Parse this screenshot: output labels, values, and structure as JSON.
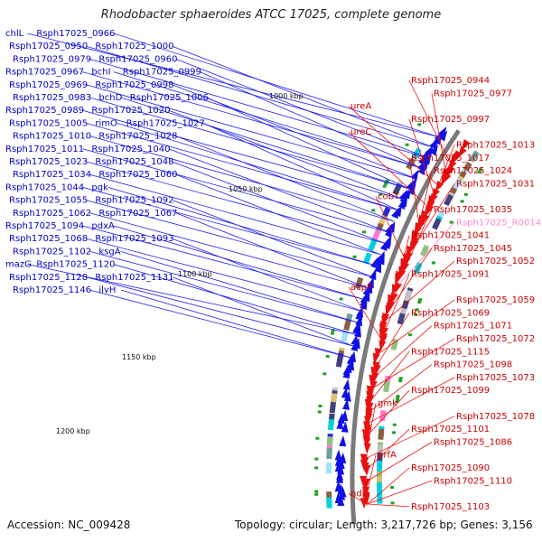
{
  "title": "Rhodobacter sphaeroides ATCC 17025, complete genome",
  "footer": {
    "accession": "Accession: NC_009428",
    "summary": "Topology: circular; Length: 3,217,726 bp; Genes: 3,156"
  },
  "colors": {
    "plus_strand": "#1010e6",
    "minus_strand": "#e81010",
    "rna": "#ff88cc",
    "backbone": "#7a7a7a",
    "label_blue": "#0000cc",
    "label_red": "#cc0000"
  },
  "scale_labels": [
    "1000 kbp",
    "1050 kbp",
    "1100 kbp",
    "1150 kbp",
    "1200 kbp"
  ],
  "left_labels": [
    "chlL",
    "Rsph17025_0966",
    "Rsph17025_0950",
    "Rsph17025_1000",
    "Rsph17025_0979",
    "Rsph17025_0960",
    "Rsph17025_0967",
    "bchI",
    "Rsph17025_0999",
    "Rsph17025_0969",
    "Rsph17025_0998",
    "Rsph17025_0983",
    "bchD",
    "Rsph17025_1006",
    "Rsph17025_0989",
    "Rsph17025_1020",
    "Rsph17025_1005",
    "rimO",
    "Rsph17025_1027",
    "Rsph17025_1010",
    "Rsph17025_1028",
    "Rsph17025_1011",
    "Rsph17025_1040",
    "Rsph17025_1023",
    "Rsph17025_1048",
    "Rsph17025_1034",
    "Rsph17025_1060",
    "Rsph17025_1044",
    "pgk",
    "Rsph17025_1055",
    "Rsph17025_1092",
    "Rsph17025_1062",
    "Rsph17025_1067",
    "Rsph17025_1094",
    "pdxA",
    "Rsph17025_1068",
    "Rsph17025_1093",
    "Rsph17025_1102",
    "ksgA",
    "mazG",
    "Rsph17025_1120",
    "Rsph17025_1128",
    "Rsph17025_1131",
    "Rsph17025_1146",
    "ilvH"
  ],
  "right_labels": [
    "Rsph17025_0944",
    "Rsph17025_0977",
    "ureA",
    "Rsph17025_0997",
    "ureC",
    "Rsph17025_1013",
    "Rsph17025_1017",
    "Rsph17025_1024",
    "Rsph17025_1031",
    "cobT",
    "Rsph17025_1035",
    "Rsph17025_R0014",
    "Rsph17025_1041",
    "Rsph17025_1045",
    "Rsph17025_1052",
    "Rsph17025_1091",
    "acpP",
    "Rsph17025_1059",
    "Rsph17025_1069",
    "Rsph17025_1071",
    "Rsph17025_1072",
    "Rsph17025_1115",
    "Rsph17025_1098",
    "Rsph17025_1073",
    "Rsph17025_1099",
    "gmk",
    "Rsph17025_1078",
    "Rsph17025_1101",
    "Rsph17025_1086",
    "prfA",
    "Rsph17025_1090",
    "Rsph17025_1110",
    "ndk",
    "Rsph17025_1103"
  ]
}
